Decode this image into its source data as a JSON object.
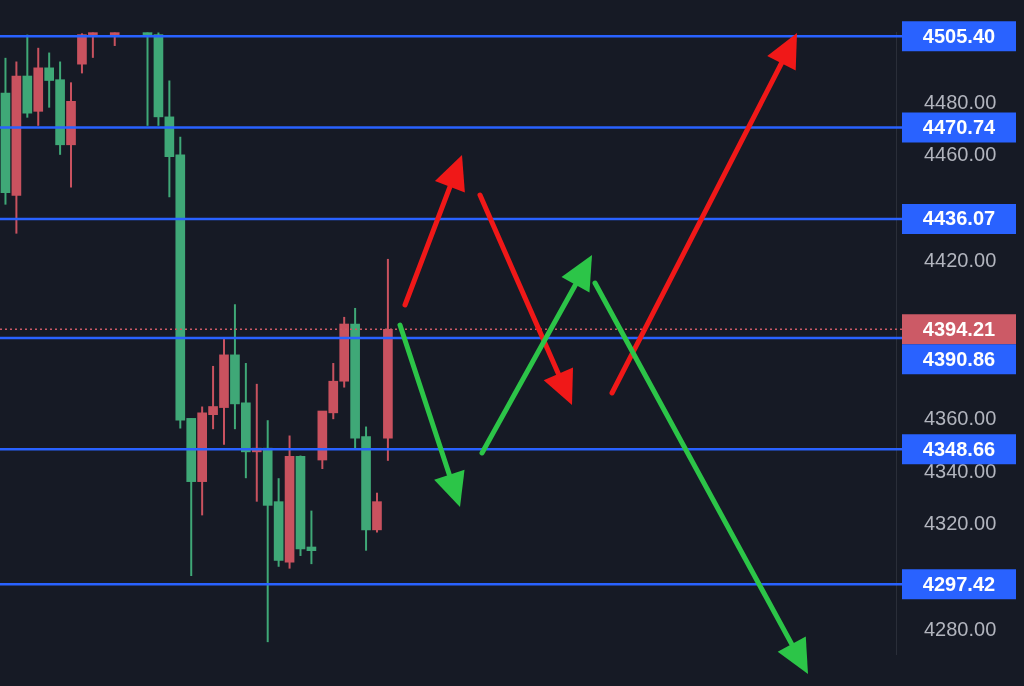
{
  "chart_data": {
    "type": "candlestick",
    "categories": [
      null,
      null,
      null,
      null,
      null,
      null,
      null,
      null,
      null,
      null,
      null,
      null,
      null,
      null,
      null,
      null,
      null,
      null,
      null,
      null,
      null,
      null,
      null,
      null,
      null,
      null,
      null,
      null,
      null,
      null,
      null,
      null,
      null,
      null,
      null,
      null,
      null,
      null,
      null,
      null,
      null,
      null,
      null,
      null,
      null,
      null,
      null,
      null,
      null,
      null,
      null,
      null,
      null,
      null,
      null,
      null,
      null,
      null,
      null,
      null,
      null,
      null,
      null,
      null,
      null,
      null,
      null,
      null,
      null,
      null,
      null,
      null,
      null,
      null,
      null,
      null,
      null,
      null,
      null,
      null,
      null,
      null
    ],
    "ohlc": [
      [
        4483.8,
        4497.2,
        4441.5,
        4446.0
      ],
      [
        4445.0,
        4495.8,
        4430.5,
        4490.3
      ],
      [
        4490.3,
        4506.0,
        4474.5,
        4476.2
      ],
      [
        4476.9,
        4501.0,
        4471.4,
        4493.4
      ],
      [
        4493.4,
        4499.2,
        4478.3,
        4488.6
      ],
      [
        4488.9,
        4495.8,
        4460.4,
        4464.2
      ],
      [
        4464.2,
        4487.9,
        4448.0,
        4480.7
      ],
      [
        4494.8,
        4506.5,
        4491.3,
        4506.0
      ],
      [
        4506.0,
        4506.8,
        4497.2,
        4506.5
      ],
      null,
      [
        4506.0,
        4506.8,
        4501.7,
        4506.5
      ],
      null,
      null,
      [
        4506.5,
        4506.8,
        4471.4,
        4506.0
      ],
      [
        4506.0,
        4506.8,
        4471.4,
        4474.8
      ],
      [
        4474.8,
        4488.6,
        4444.3,
        4459.7
      ],
      [
        4460.4,
        4467.3,
        4356.6,
        4359.7
      ],
      [
        4360.4,
        4360.4,
        4300.6,
        4336.4
      ],
      [
        4336.4,
        4364.9,
        4323.6,
        4362.5
      ],
      [
        4361.8,
        4380.3,
        4356.3,
        4364.9
      ],
      [
        4364.5,
        4391.0,
        4350.4,
        4384.5
      ],
      [
        4384.5,
        4403.7,
        4356.3,
        4365.9
      ],
      [
        4366.3,
        4381.4,
        4337.7,
        4347.7
      ],
      [
        4347.7,
        4373.5,
        4328.8,
        4349.1
      ],
      [
        4349.1,
        4359.7,
        4275.5,
        4327.4
      ],
      [
        4328.8,
        4337.7,
        4304.1,
        4306.5
      ],
      [
        4305.8,
        4353.9,
        4303.4,
        4346.0
      ],
      [
        4346.0,
        4346.3,
        4308.2,
        4310.9
      ],
      [
        4311.6,
        4325.4,
        4305.1,
        4310.2
      ],
      [
        4344.6,
        4363.2,
        4341.2,
        4363.2
      ],
      [
        4362.5,
        4381.4,
        4360.1,
        4374.5
      ],
      [
        4374.5,
        4398.9,
        4372.1,
        4396.2
      ],
      [
        4396.2,
        4402.3,
        4348.7,
        4352.9
      ],
      [
        4353.5,
        4357.3,
        4310.2,
        4318.1
      ],
      [
        4318.1,
        4332.2,
        4317.1,
        4328.8
      ],
      [
        4352.9,
        4420.9,
        4344.3,
        4394.21
      ],
      null,
      null,
      null,
      null,
      null,
      null,
      null,
      null,
      null,
      null,
      null,
      null,
      null,
      null,
      null,
      null,
      null,
      null,
      null,
      null,
      null,
      null,
      null,
      null,
      null,
      null,
      null,
      null,
      null,
      null,
      null,
      null,
      null,
      null,
      null,
      null,
      null,
      null,
      null,
      null,
      null,
      null,
      null,
      null,
      null,
      null
    ],
    "colors": [
      "#3fa877",
      "#c9525f",
      "#3fa877",
      "#c9525f",
      "#3fa877",
      "#3fa877",
      "#c9525f",
      "#c9525f",
      "#c9525f",
      null,
      "#c9525f",
      null,
      null,
      "#3fa877",
      "#3fa877",
      "#3fa877",
      "#3fa877",
      "#3fa877",
      "#c9525f",
      "#c9525f",
      "#c9525f",
      "#3fa877",
      "#3fa877",
      "#c9525f",
      "#3fa877",
      "#3fa877",
      "#c9525f",
      "#3fa877",
      "#3fa877",
      "#c9525f",
      "#c9525f",
      "#c9525f",
      "#3fa877",
      "#3fa877",
      "#c9525f",
      "#c9525f",
      null,
      null,
      null,
      null,
      null,
      null,
      null,
      null,
      null,
      null,
      null,
      null,
      null,
      null,
      null,
      null,
      null,
      null,
      null,
      null,
      null,
      null,
      null,
      null,
      null,
      null,
      null,
      null,
      null,
      null,
      null,
      null,
      null,
      null,
      null,
      null,
      null,
      null,
      null,
      null,
      null,
      null,
      null,
      null,
      null,
      null
    ],
    "ylim": [
      4271,
      4507
    ],
    "yticks": [
      {
        "value": 4480,
        "label": "4480.00"
      },
      {
        "value": 4460,
        "label": "4460.00"
      },
      {
        "value": 4420,
        "label": "4420.00"
      },
      {
        "value": 4360,
        "label": "4360.00"
      },
      {
        "value": 4340,
        "label": "4340.00"
      },
      {
        "value": 4320,
        "label": "4320.00"
      },
      {
        "value": 4280,
        "label": "4280.00"
      }
    ],
    "ref_lines": [
      {
        "axis": "y",
        "value": 4505.4,
        "label": "4505.40",
        "color": "#2962ff",
        "line_style": "solid"
      },
      {
        "axis": "y",
        "value": 4470.74,
        "label": "4470.74",
        "color": "#2962ff",
        "line_style": "solid"
      },
      {
        "axis": "y",
        "value": 4436.07,
        "label": "4436.07",
        "color": "#2962ff",
        "line_style": "solid"
      },
      {
        "axis": "y",
        "value": 4394.21,
        "label": "4394.21",
        "color": "#cc5a66",
        "line_style": "dotted"
      },
      {
        "axis": "y",
        "value": 4390.86,
        "label": "4390.86",
        "color": "#2962ff",
        "line_style": "solid"
      },
      {
        "axis": "y",
        "value": 4348.66,
        "label": "4348.66",
        "color": "#2962ff",
        "line_style": "solid"
      },
      {
        "axis": "y",
        "value": 4297.42,
        "label": "4297.42",
        "color": "#2962ff",
        "line_style": "solid"
      }
    ],
    "grid": false,
    "legend": false,
    "tick_labels": "y"
  }
}
